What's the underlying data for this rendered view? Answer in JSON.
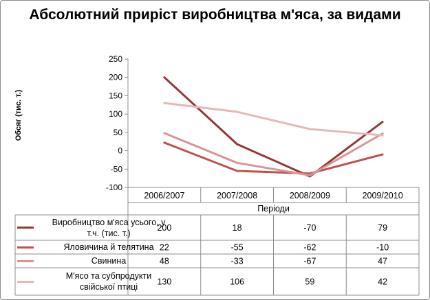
{
  "chart_data": {
    "type": "line",
    "title": "Абсолютний приріст виробництва м'яса, за видами",
    "ylabel": "Обсяг (тис. т.)",
    "xlabel": "Періоди",
    "categories": [
      "2006/2007",
      "2007/2008",
      "2008/2009",
      "2009/2010"
    ],
    "ylim": [
      -100,
      250
    ],
    "yticks": [
      250,
      200,
      150,
      100,
      50,
      0,
      -50,
      -100
    ],
    "grid": false,
    "legend_position": "bottom (data table)",
    "series": [
      {
        "name": "Виробництво м'яса усього, у т.ч. (тис. т.)",
        "name_lines": [
          "Виробництво м'яса усього, у",
          "т.ч. (тис. т.)"
        ],
        "color": "#953735",
        "values": [
          200,
          18,
          -70,
          79
        ]
      },
      {
        "name": "Яловичина й телятина",
        "name_lines": [
          "Яловичина й телятина"
        ],
        "color": "#c0504d",
        "values": [
          22,
          -55,
          -62,
          -10
        ]
      },
      {
        "name": "Свинина",
        "name_lines": [
          "Свинина"
        ],
        "color": "#d99594",
        "values": [
          48,
          -33,
          -67,
          47
        ]
      },
      {
        "name": "М'ясо та субпродукти свійської птиці",
        "name_lines": [
          "М'ясо та субпродукти",
          "свійської птиці"
        ],
        "color": "#e6b9b8",
        "values": [
          130,
          106,
          59,
          42
        ]
      }
    ]
  }
}
